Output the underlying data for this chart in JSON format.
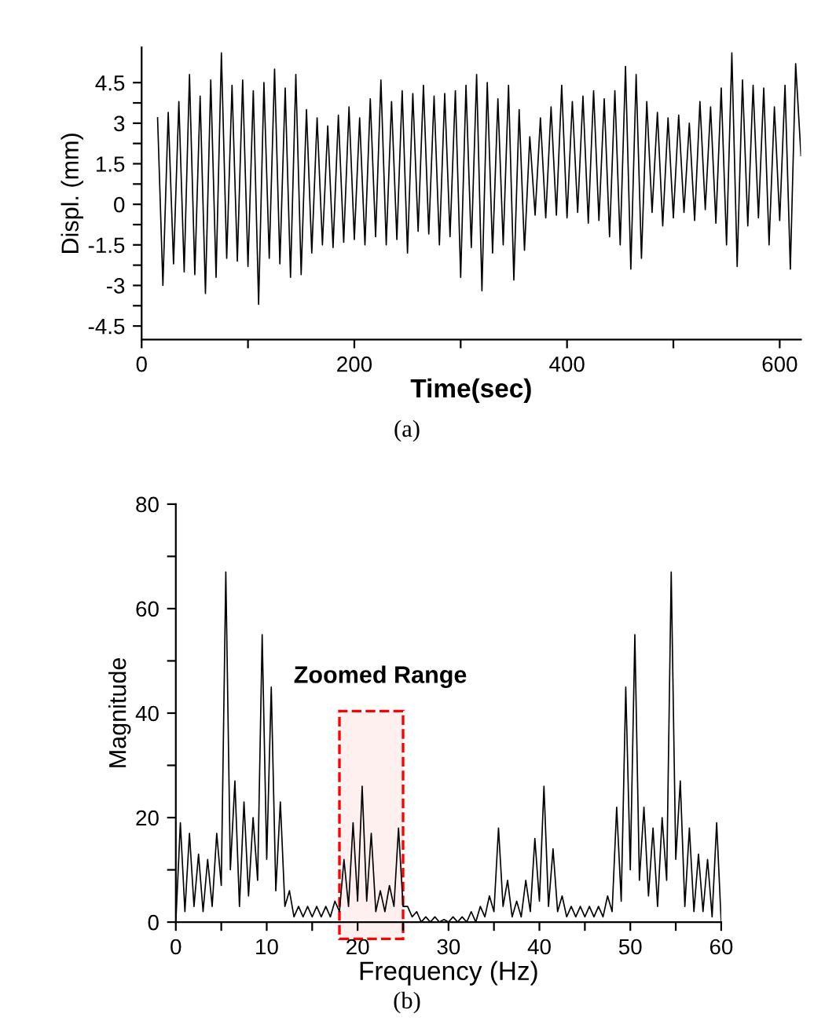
{
  "chart_data": [
    {
      "type": "line",
      "xlabel": "Time(sec)",
      "ylabel": "Displ. (mm)",
      "annotations": [
        "(a)"
      ],
      "xlim": [
        0,
        620
      ],
      "ylim": [
        -5,
        5.8
      ],
      "xticks": [
        0,
        {
          "value": 100,
          "label": null
        },
        200,
        {
          "value": 300,
          "label": null
        },
        400,
        {
          "value": 500,
          "label": null
        },
        600
      ],
      "yticks": [
        {
          "value": -4.5,
          "label": "-4.5"
        },
        {
          "value": -3.75,
          "label": null
        },
        {
          "value": -3,
          "label": "-3"
        },
        {
          "value": -2.25,
          "label": null
        },
        {
          "value": -1.5,
          "label": "-1.5"
        },
        {
          "value": -0.75,
          "label": null
        },
        0,
        {
          "value": 0.75,
          "label": null
        },
        1.5,
        {
          "value": 2.25,
          "label": null
        },
        3,
        {
          "value": 3.75,
          "label": null
        },
        4.5
      ],
      "grid": false,
      "legend": false,
      "series": [
        {
          "color": "#000000",
          "x": [
            15,
            20,
            25,
            30,
            35,
            40,
            45,
            50,
            55,
            60,
            65,
            70,
            75,
            80,
            85,
            90,
            95,
            100,
            105,
            110,
            115,
            120,
            125,
            130,
            135,
            140,
            145,
            150,
            155,
            160,
            165,
            170,
            175,
            180,
            185,
            190,
            195,
            200,
            205,
            210,
            215,
            220,
            225,
            230,
            235,
            240,
            245,
            250,
            255,
            260,
            265,
            270,
            275,
            280,
            285,
            290,
            295,
            300,
            305,
            310,
            315,
            320,
            325,
            330,
            335,
            340,
            345,
            350,
            355,
            360,
            365,
            370,
            375,
            380,
            385,
            390,
            395,
            400,
            405,
            410,
            415,
            420,
            425,
            430,
            435,
            440,
            445,
            450,
            455,
            460,
            465,
            470,
            475,
            480,
            485,
            490,
            495,
            500,
            505,
            510,
            515,
            520,
            525,
            530,
            535,
            540,
            545,
            550,
            555,
            560,
            565,
            570,
            575,
            580,
            585,
            590,
            595,
            600,
            605,
            610,
            615,
            620
          ],
          "values": [
            3.2,
            -3.0,
            3.4,
            -2.2,
            3.8,
            -2.5,
            4.8,
            -2.6,
            4.0,
            -3.3,
            4.6,
            -2.7,
            5.6,
            -2.0,
            4.4,
            -2.1,
            4.6,
            -2.3,
            4.2,
            -3.7,
            4.5,
            -2.0,
            5.0,
            -2.2,
            4.3,
            -2.7,
            4.8,
            -2.6,
            3.5,
            -1.8,
            3.2,
            -1.5,
            2.9,
            -1.6,
            3.3,
            -1.4,
            3.6,
            -1.3,
            3.2,
            -1.5,
            3.9,
            -1.2,
            4.6,
            -1.5,
            3.8,
            -1.3,
            4.2,
            -1.8,
            4.1,
            -1.0,
            4.4,
            -1.1,
            4.0,
            -1.5,
            4.1,
            -1.2,
            4.2,
            -2.7,
            4.4,
            -1.6,
            4.8,
            -3.2,
            4.5,
            -1.8,
            3.9,
            -1.5,
            4.4,
            -2.8,
            3.5,
            -1.7,
            2.5,
            -0.4,
            3.2,
            -0.5,
            3.6,
            -0.4,
            4.4,
            -0.5,
            3.8,
            -0.3,
            4.0,
            -0.7,
            4.2,
            -0.6,
            3.9,
            -1.2,
            4.2,
            -1.5,
            5.1,
            -2.4,
            4.8,
            -2.0,
            3.8,
            -0.3,
            3.4,
            -0.8,
            3.2,
            -0.5,
            3.3,
            -0.3,
            3.0,
            -0.6,
            3.8,
            -0.2,
            3.6,
            -0.7,
            4.3,
            -1.5,
            5.6,
            -2.3,
            4.6,
            -0.8,
            4.4,
            -0.5,
            4.3,
            -1.5,
            3.6,
            -0.6,
            4.4,
            -2.4,
            5.2,
            1.8
          ]
        }
      ]
    },
    {
      "type": "line",
      "xlabel": "Frequency (Hz)",
      "ylabel": "Magnitude",
      "annotations": [
        "(b)"
      ],
      "xlim": [
        0,
        60
      ],
      "ylim": [
        0,
        80
      ],
      "xticks": [
        0,
        {
          "value": 5,
          "label": null
        },
        10,
        {
          "value": 15,
          "label": null
        },
        20,
        {
          "value": 25,
          "label": null
        },
        30,
        {
          "value": 35,
          "label": null
        },
        40,
        {
          "value": 45,
          "label": null
        },
        50,
        {
          "value": 55,
          "label": null
        },
        60
      ],
      "yticks": [
        0,
        {
          "value": 10,
          "label": null
        },
        20,
        {
          "value": 30,
          "label": null
        },
        40,
        {
          "value": 50,
          "label": null
        },
        60,
        {
          "value": 70,
          "label": null
        },
        80
      ],
      "grid": false,
      "legend": false,
      "bands": [
        {
          "axis": "x",
          "from": 18,
          "to": 25,
          "label": "Zoomed Range",
          "color": "#ff0000"
        }
      ],
      "series": [
        {
          "color": "#000000",
          "x": [
            0,
            0.5,
            1,
            1.5,
            2,
            2.5,
            3,
            3.5,
            4,
            4.5,
            5,
            5.5,
            6,
            6.5,
            7,
            7.5,
            8,
            8.5,
            9,
            9.5,
            10,
            10.5,
            11,
            11.5,
            12,
            12.5,
            13,
            13.5,
            14,
            14.5,
            15,
            15.5,
            16,
            16.5,
            17,
            17.5,
            18,
            18.5,
            19,
            19.5,
            20,
            20.5,
            21,
            21.5,
            22,
            22.5,
            23,
            23.5,
            24,
            24.5,
            25,
            25.5,
            26,
            26.5,
            27,
            27.5,
            28,
            28.5,
            29,
            29.5,
            30,
            30.5,
            31,
            31.5,
            32,
            32.5,
            33,
            33.5,
            34,
            34.5,
            35,
            35.5,
            36,
            36.5,
            37,
            37.5,
            38,
            38.5,
            39,
            39.5,
            40,
            40.5,
            41,
            41.5,
            42,
            42.5,
            43,
            43.5,
            44,
            44.5,
            45,
            45.5,
            46,
            46.5,
            47,
            47.5,
            48,
            48.5,
            49,
            49.5,
            50,
            50.5,
            51,
            51.5,
            52,
            52.5,
            53,
            53.5,
            54,
            54.5,
            55,
            55.5,
            56,
            56.5,
            57,
            57.5,
            58,
            58.5,
            59,
            59.5,
            60
          ],
          "values": [
            0,
            19,
            2,
            17,
            3,
            13,
            2,
            12,
            3,
            17,
            7,
            67,
            10,
            27,
            3,
            23,
            5,
            20,
            8,
            55,
            12,
            45,
            6,
            23,
            3,
            6,
            1,
            3,
            1,
            3,
            1,
            3,
            1,
            3,
            1,
            4,
            2,
            12,
            3,
            19,
            4,
            26,
            4,
            17,
            2,
            6,
            2,
            7,
            3,
            18,
            3,
            3,
            1,
            2,
            0,
            1,
            0,
            1,
            0,
            0.5,
            0,
            1,
            0,
            1,
            0,
            2,
            0,
            3,
            1,
            5,
            2,
            18,
            3,
            8,
            1,
            4,
            1,
            8,
            2,
            16,
            4,
            26,
            3,
            14,
            2,
            5,
            1,
            3,
            1,
            3,
            1,
            3,
            1,
            3,
            1,
            5,
            2,
            22,
            4,
            45,
            10,
            55,
            8,
            22,
            5,
            18,
            3,
            20,
            8,
            67,
            12,
            27,
            3,
            18,
            2,
            13,
            2,
            12,
            1,
            19,
            0
          ]
        }
      ]
    }
  ]
}
